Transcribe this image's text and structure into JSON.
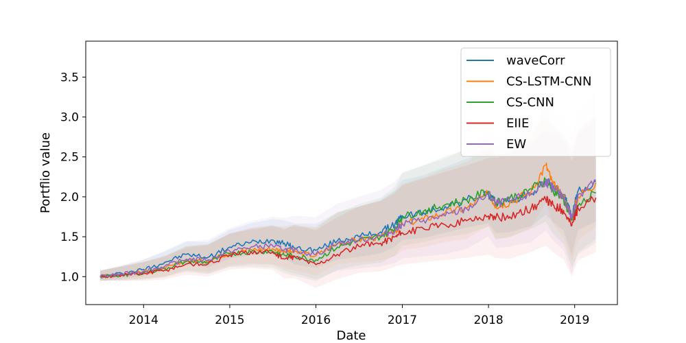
{
  "chart_data": {
    "type": "line",
    "title": "",
    "xlabel": "Date",
    "ylabel": "Portflio value",
    "x_range": [
      "2013-05-01",
      "2019-07-01"
    ],
    "ylim": [
      0.65,
      3.95
    ],
    "x_ticks": [
      "2014",
      "2015",
      "2016",
      "2017",
      "2018",
      "2019"
    ],
    "y_ticks": [
      "1.0",
      "1.5",
      "2.0",
      "2.5",
      "3.0",
      "3.5"
    ],
    "grid": false,
    "legend_position": "top-right",
    "x": [
      "2013-07-01",
      "2013-10-01",
      "2014-01-01",
      "2014-04-01",
      "2014-07-01",
      "2014-10-01",
      "2015-01-01",
      "2015-04-01",
      "2015-07-01",
      "2015-08-20",
      "2015-10-01",
      "2016-01-01",
      "2016-04-01",
      "2016-07-01",
      "2016-10-01",
      "2016-12-01",
      "2017-01-01",
      "2017-04-01",
      "2017-07-01",
      "2017-10-01",
      "2018-01-01",
      "2018-02-01",
      "2018-04-01",
      "2018-07-01",
      "2018-09-01",
      "2018-10-01",
      "2018-11-15",
      "2018-12-20",
      "2019-01-15",
      "2019-04-01"
    ],
    "series": [
      {
        "name": "waveCorr",
        "color": "#1f77b4",
        "values": [
          1.0,
          1.04,
          1.09,
          1.18,
          1.28,
          1.24,
          1.37,
          1.43,
          1.46,
          1.42,
          1.36,
          1.33,
          1.45,
          1.5,
          1.56,
          1.66,
          1.76,
          1.8,
          1.88,
          1.96,
          2.03,
          1.92,
          1.95,
          2.04,
          2.2,
          2.12,
          2.03,
          1.74,
          2.07,
          2.19
        ]
      },
      {
        "name": "CS-LSTM-CNN",
        "color": "#ff7f0e",
        "values": [
          1.0,
          1.03,
          1.06,
          1.1,
          1.2,
          1.2,
          1.3,
          1.34,
          1.35,
          1.32,
          1.31,
          1.26,
          1.42,
          1.46,
          1.5,
          1.57,
          1.66,
          1.72,
          1.8,
          1.86,
          2.04,
          1.89,
          1.93,
          2.07,
          2.4,
          2.15,
          2.0,
          1.72,
          2.0,
          2.18
        ]
      },
      {
        "name": "CS-CNN",
        "color": "#2ca02c",
        "values": [
          1.0,
          1.02,
          1.05,
          1.1,
          1.19,
          1.18,
          1.29,
          1.31,
          1.32,
          1.27,
          1.26,
          1.21,
          1.37,
          1.45,
          1.5,
          1.61,
          1.75,
          1.82,
          1.9,
          1.96,
          2.07,
          1.93,
          1.98,
          2.1,
          2.21,
          2.08,
          1.97,
          1.7,
          1.88,
          2.05
        ]
      },
      {
        "name": "EIIE",
        "color": "#d62728",
        "values": [
          1.0,
          1.02,
          1.04,
          1.08,
          1.16,
          1.16,
          1.27,
          1.31,
          1.31,
          1.22,
          1.25,
          1.15,
          1.28,
          1.38,
          1.42,
          1.5,
          1.55,
          1.6,
          1.65,
          1.7,
          1.76,
          1.74,
          1.75,
          1.86,
          1.96,
          1.9,
          1.83,
          1.64,
          1.86,
          1.99
        ]
      },
      {
        "name": "EW",
        "color": "#9467bd",
        "values": [
          1.0,
          1.03,
          1.07,
          1.13,
          1.22,
          1.21,
          1.32,
          1.37,
          1.39,
          1.34,
          1.33,
          1.28,
          1.41,
          1.46,
          1.51,
          1.58,
          1.66,
          1.71,
          1.76,
          1.85,
          2.03,
          1.91,
          1.95,
          2.03,
          2.2,
          2.1,
          2.0,
          1.73,
          2.02,
          2.21
        ]
      }
    ]
  }
}
